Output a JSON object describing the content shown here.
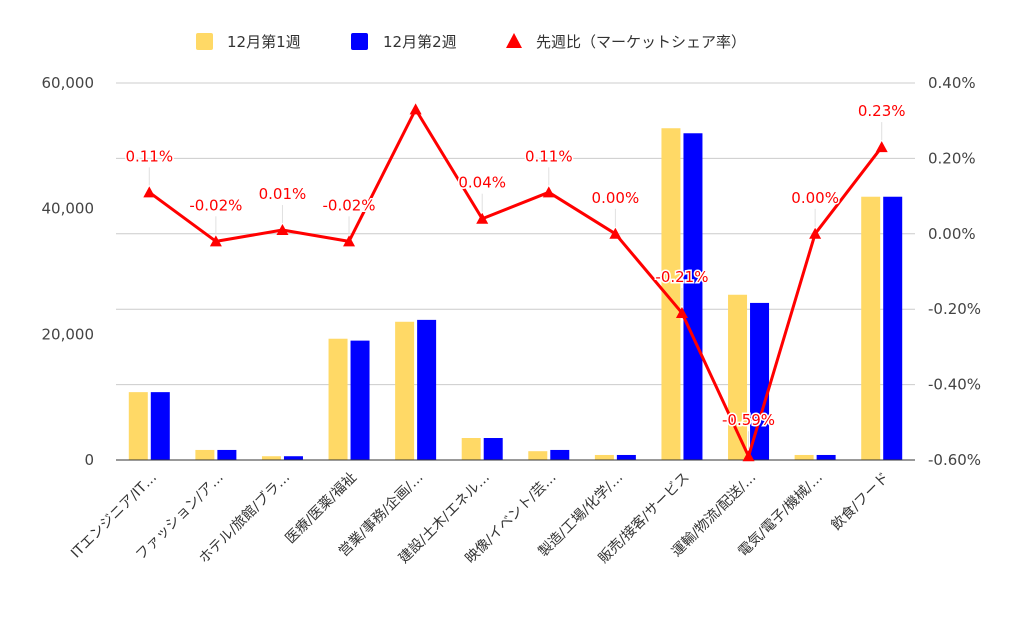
{
  "chart_data": {
    "type": "bar",
    "categories": [
      "ITエンジニア/IT…",
      "ファッション/ア…",
      "ホテル/旅館/ブラ…",
      "医療/医薬/福祉",
      "営業/事務/企画/…",
      "建設/土木/エネル…",
      "映像/イベント/芸…",
      "製造/工場/化学/…",
      "販売/接客/サービス",
      "運輸/物流/配送/…",
      "電気/電子/機械/…",
      "飲食/フード"
    ],
    "series": [
      {
        "name": "12月第1週",
        "kind": "bar",
        "axis": "left",
        "color": "#ffd966",
        "values": [
          10800,
          1600,
          600,
          19300,
          22000,
          3500,
          1400,
          800,
          52800,
          26300,
          800,
          41900
        ]
      },
      {
        "name": "12月第2週",
        "kind": "bar",
        "axis": "left",
        "color": "#0000ff",
        "values": [
          10800,
          1600,
          600,
          19000,
          22300,
          3500,
          1600,
          800,
          52000,
          25000,
          800,
          41900
        ]
      },
      {
        "name": "先週比（マーケットシェア率）",
        "kind": "line",
        "axis": "right",
        "color": "#ff0000",
        "values": [
          0.11,
          -0.02,
          0.01,
          -0.02,
          0.33,
          0.04,
          0.11,
          0.0,
          -0.21,
          -0.59,
          0.0,
          0.23
        ],
        "labels": [
          "0.11%",
          "-0.02%",
          "0.01%",
          "-0.02%",
          "",
          "0.04%",
          "0.11%",
          "0.00%",
          "-0.21%",
          "-0.59%",
          "0.00%",
          "0.23%"
        ]
      }
    ],
    "y_left": {
      "ylim": [
        0,
        60000
      ],
      "ticks": [
        "0",
        "20,000",
        "40,000",
        "60,000"
      ],
      "tick_values": [
        0,
        20000,
        40000,
        60000
      ]
    },
    "y_right": {
      "ylim": [
        -0.6,
        0.4
      ],
      "ticks": [
        "-0.60%",
        "-0.40%",
        "-0.20%",
        "0.00%",
        "0.20%",
        "0.40%"
      ],
      "tick_values": [
        -0.6,
        -0.4,
        -0.2,
        0.0,
        0.2,
        0.4
      ]
    },
    "grid": true,
    "legend_position": "top-center"
  }
}
